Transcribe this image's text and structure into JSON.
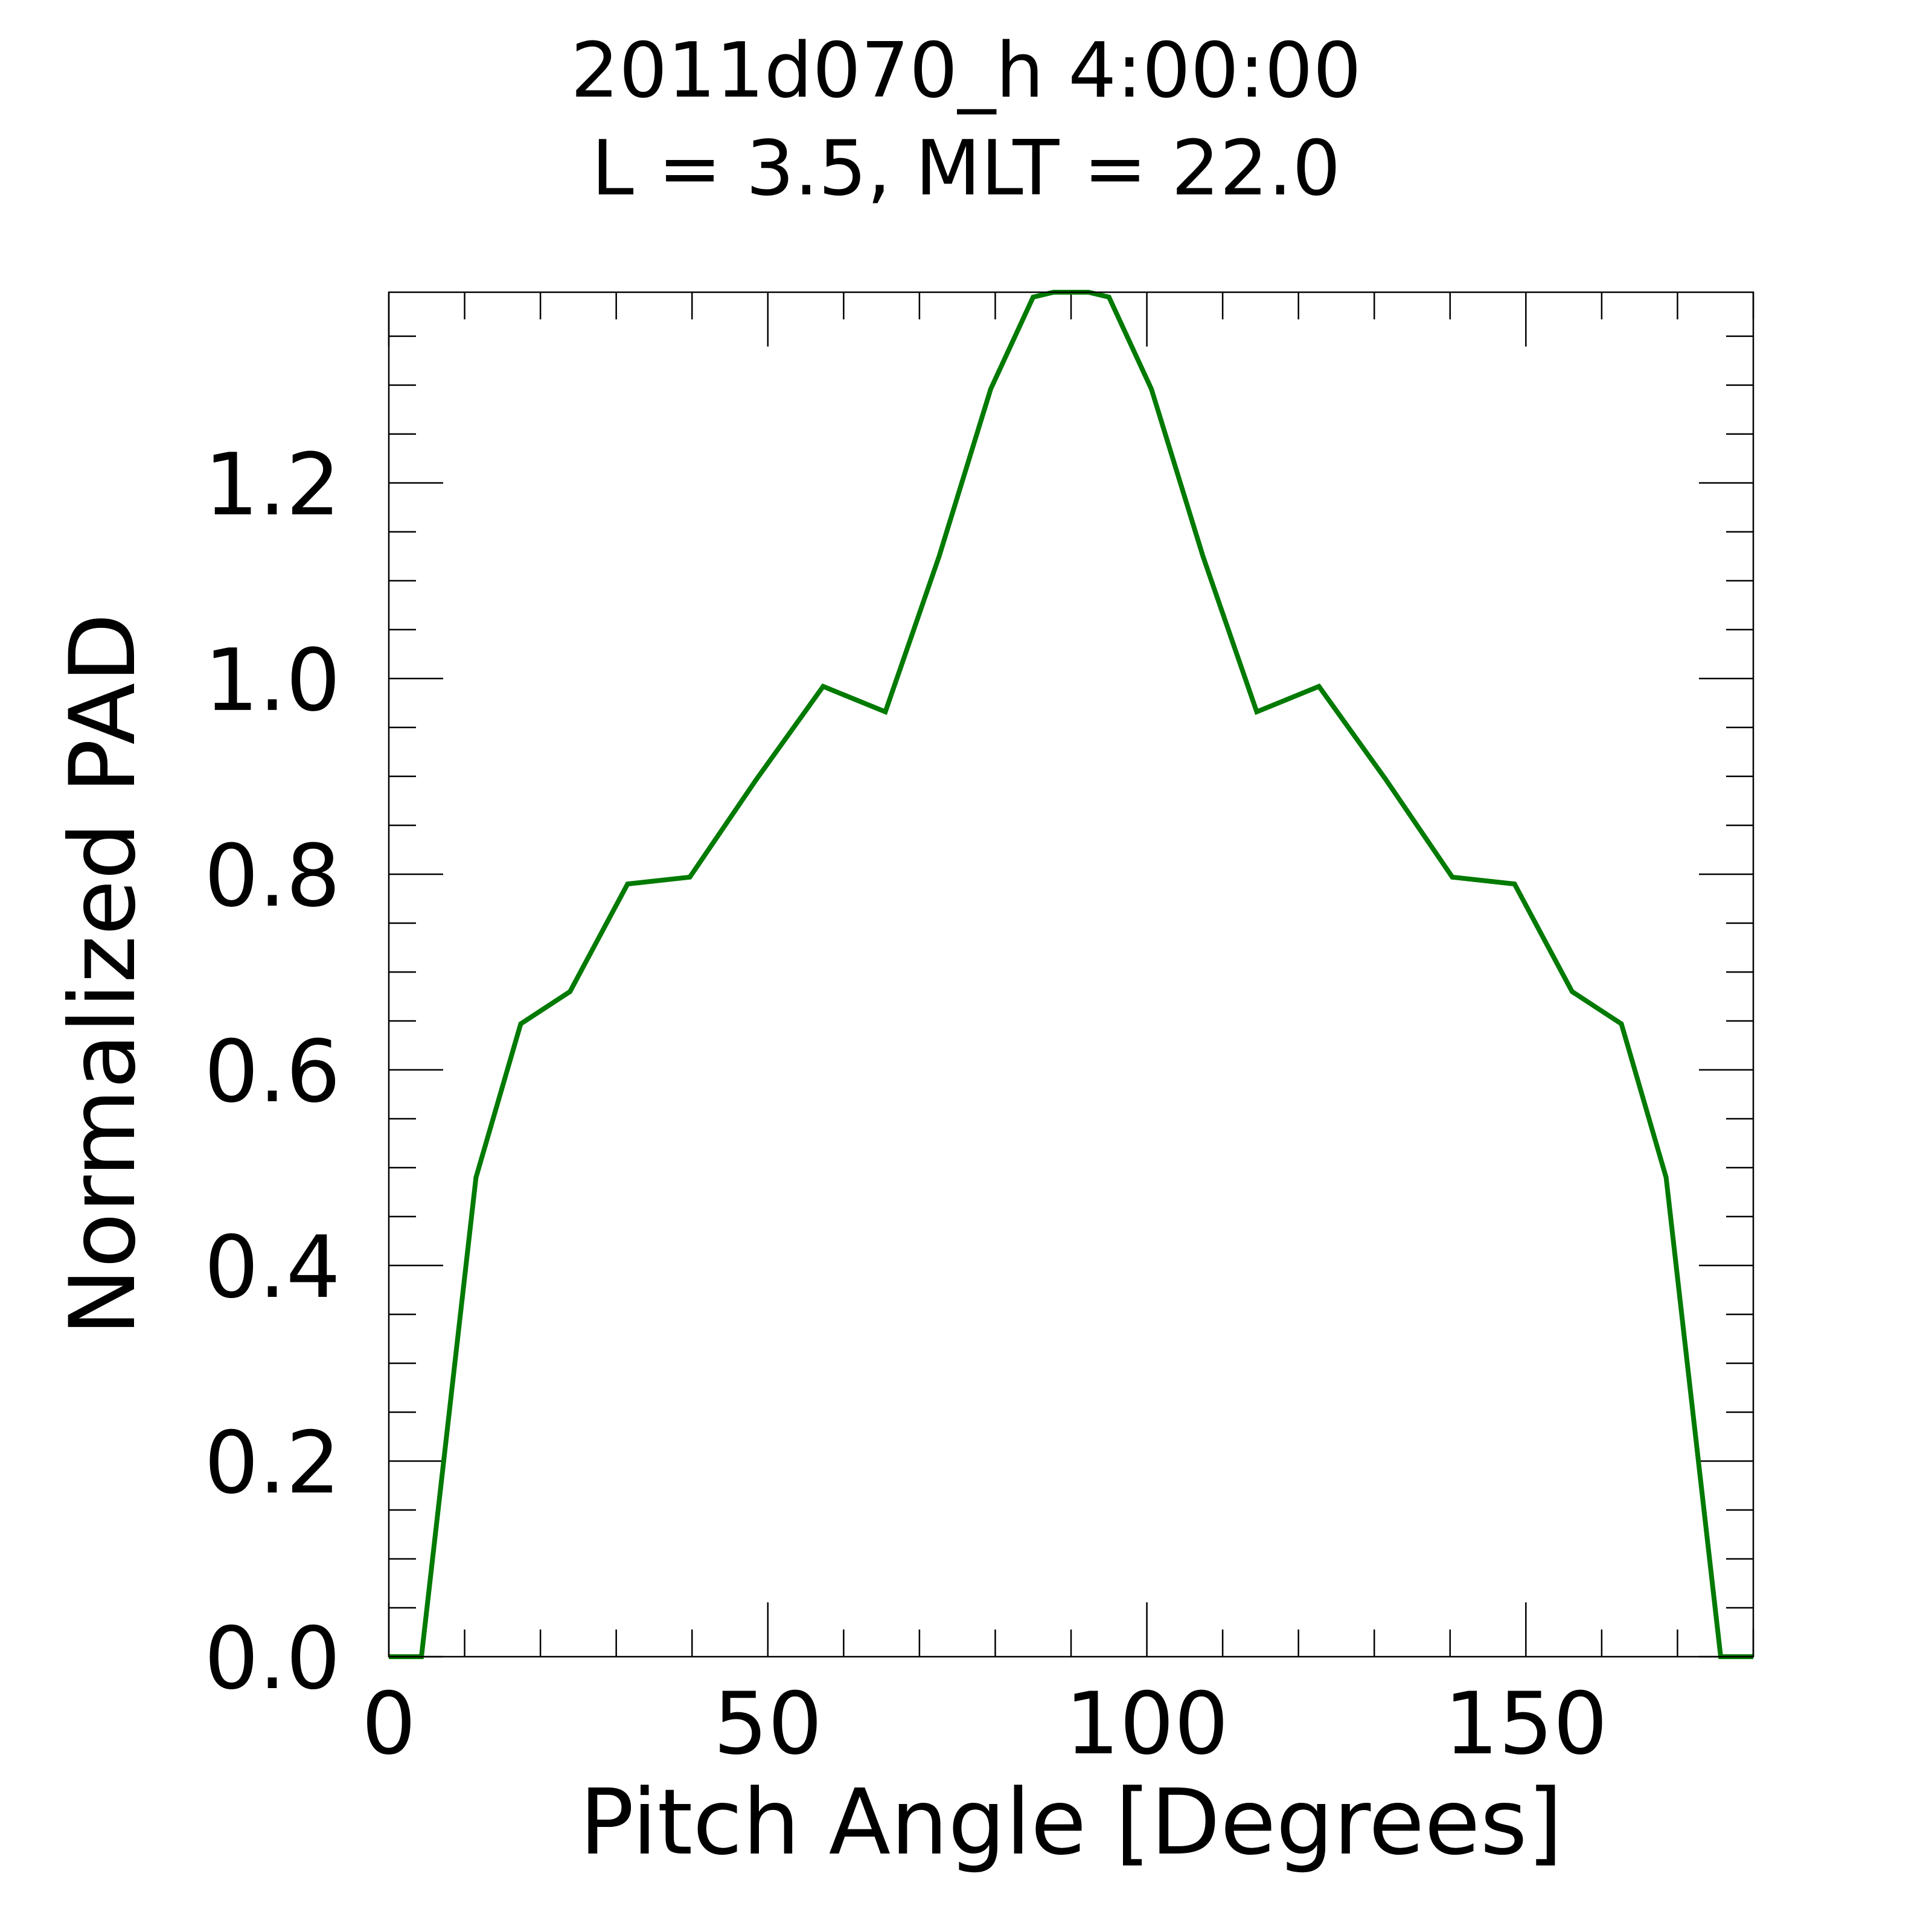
{
  "chart_data": {
    "type": "line",
    "title": "2011d070_h   4:00:00",
    "subtitle": "L = 3.5, MLT = 22.0",
    "xlabel": "Pitch Angle [Degrees]",
    "ylabel": "Normalized PAD",
    "xlim": [
      0,
      180
    ],
    "ylim": [
      0,
      1.395
    ],
    "x_ticks": [
      0,
      50,
      100,
      150
    ],
    "x_tick_labels": [
      "0",
      "50",
      "100",
      "150"
    ],
    "x_minor_step": 10,
    "y_ticks": [
      0,
      0.2,
      0.4,
      0.6,
      0.8,
      1.0,
      1.2
    ],
    "y_tick_labels": [
      "0.0",
      "0.2",
      "0.4",
      "0.6",
      "0.8",
      "1.0",
      "1.2"
    ],
    "y_minor_step": 0.05,
    "grid": false,
    "legend": "none",
    "series": [
      {
        "color": "#007a00",
        "x": [
          0,
          4.3,
          11.5,
          17.4,
          23.9,
          31.5,
          39.7,
          48.5,
          57.3,
          65.5,
          72.6,
          79.4,
          85.0,
          87.7,
          92.3,
          95.0,
          100.6,
          107.4,
          114.5,
          122.7,
          131.5,
          140.3,
          148.5,
          156.1,
          162.6,
          168.5,
          175.7,
          180
        ],
        "y": [
          0,
          0,
          0.49,
          0.647,
          0.68,
          0.79,
          0.797,
          0.897,
          0.992,
          0.966,
          1.125,
          1.296,
          1.39,
          1.395,
          1.395,
          1.39,
          1.296,
          1.125,
          0.966,
          0.992,
          0.897,
          0.797,
          0.79,
          0.68,
          0.647,
          0.49,
          0,
          0
        ]
      }
    ]
  }
}
